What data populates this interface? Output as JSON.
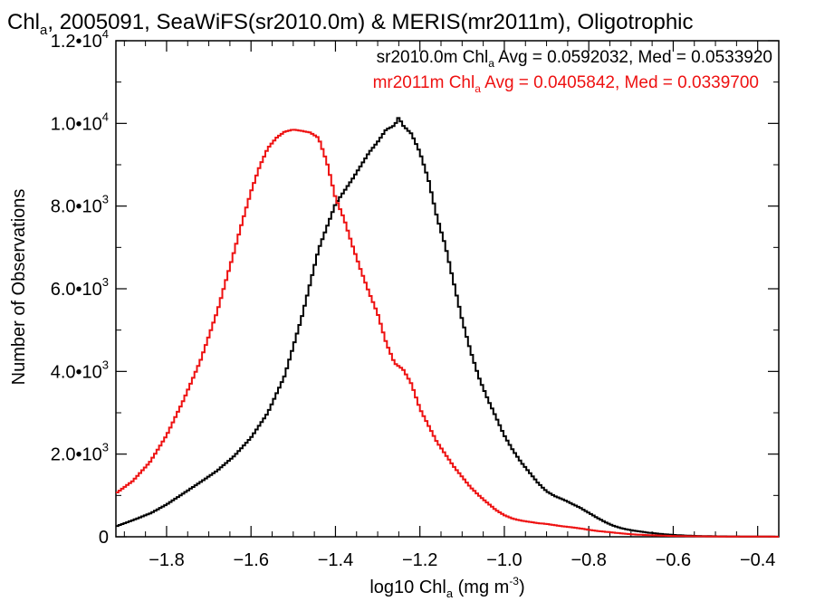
{
  "chart_data": {
    "type": "line",
    "title": "Chl",
    "title_sub": "a",
    "title_rest": ", 2005091, SeaWiFS(sr2010.0m) & MERIS(mr2011m), Oligotrophic",
    "xlabel_pre": "log10 Chl",
    "xlabel_sub": "a",
    "xlabel_unit": " (mg m",
    "xlabel_sup": "-3",
    "xlabel_close": ")",
    "ylabel": "Number of Observations",
    "xlim": [
      -1.92,
      -0.35
    ],
    "ylim": [
      0,
      12000
    ],
    "x_ticks": [
      {
        "value": -1.8,
        "label": "−1.8"
      },
      {
        "value": -1.6,
        "label": "−1.6"
      },
      {
        "value": -1.4,
        "label": "−1.4"
      },
      {
        "value": -1.2,
        "label": "−1.2"
      },
      {
        "value": -1.0,
        "label": "−1.0"
      },
      {
        "value": -0.8,
        "label": "−0.8"
      },
      {
        "value": -0.6,
        "label": "−0.6"
      },
      {
        "value": -0.4,
        "label": "−0.4"
      }
    ],
    "y_ticks": [
      {
        "value": 0,
        "label": "0",
        "exp": ""
      },
      {
        "value": 2000,
        "label": "2.0•10",
        "exp": "3"
      },
      {
        "value": 4000,
        "label": "4.0•10",
        "exp": "3"
      },
      {
        "value": 6000,
        "label": "6.0•10",
        "exp": "3"
      },
      {
        "value": 8000,
        "label": "8.0•10",
        "exp": "3"
      },
      {
        "value": 10000,
        "label": "1.0•10",
        "exp": "4"
      },
      {
        "value": 12000,
        "label": "1.2•10",
        "exp": "4"
      }
    ],
    "legend": [
      {
        "pre": "sr2010.0m Chl",
        "sub": "a",
        "post": " Avg = 0.0592032, Med = 0.0533920",
        "color": "#000000"
      },
      {
        "pre": "mr2011m Chl",
        "sub": "a",
        "post": " Avg = 0.0405842, Med = 0.0339700",
        "color": "#ee1111"
      }
    ],
    "series": [
      {
        "color": "#000000",
        "x": [
          -1.92,
          -1.88,
          -1.84,
          -1.8,
          -1.76,
          -1.72,
          -1.68,
          -1.64,
          -1.6,
          -1.56,
          -1.52,
          -1.48,
          -1.44,
          -1.4,
          -1.36,
          -1.32,
          -1.3,
          -1.28,
          -1.26,
          -1.25,
          -1.24,
          -1.22,
          -1.2,
          -1.18,
          -1.16,
          -1.14,
          -1.12,
          -1.1,
          -1.08,
          -1.06,
          -1.04,
          -1.02,
          -1.0,
          -0.98,
          -0.96,
          -0.94,
          -0.92,
          -0.9,
          -0.88,
          -0.86,
          -0.84,
          -0.82,
          -0.8,
          -0.78,
          -0.76,
          -0.74,
          -0.72,
          -0.7,
          -0.68,
          -0.66,
          -0.64,
          -0.62,
          -0.6,
          -0.58,
          -0.56,
          -0.54,
          -0.5,
          -0.45,
          -0.4,
          -0.35
        ],
        "values": [
          250,
          400,
          560,
          780,
          1050,
          1320,
          1600,
          1950,
          2400,
          3000,
          3900,
          5300,
          6950,
          8050,
          8650,
          9300,
          9550,
          9850,
          9950,
          10150,
          9950,
          9750,
          9300,
          8650,
          7750,
          7050,
          6150,
          5250,
          4500,
          3850,
          3350,
          2900,
          2450,
          2100,
          1800,
          1550,
          1300,
          1100,
          980,
          900,
          800,
          700,
          580,
          460,
          350,
          260,
          200,
          160,
          130,
          100,
          80,
          60,
          45,
          35,
          25,
          20,
          12,
          8,
          5,
          3
        ]
      },
      {
        "color": "#ee1111",
        "x": [
          -1.92,
          -1.88,
          -1.84,
          -1.8,
          -1.76,
          -1.72,
          -1.68,
          -1.64,
          -1.62,
          -1.6,
          -1.58,
          -1.56,
          -1.54,
          -1.52,
          -1.5,
          -1.48,
          -1.46,
          -1.44,
          -1.42,
          -1.4,
          -1.38,
          -1.36,
          -1.34,
          -1.32,
          -1.3,
          -1.28,
          -1.26,
          -1.24,
          -1.22,
          -1.2,
          -1.18,
          -1.16,
          -1.14,
          -1.12,
          -1.1,
          -1.08,
          -1.06,
          -1.04,
          -1.02,
          -1.0,
          -0.98,
          -0.96,
          -0.94,
          -0.92,
          -0.9,
          -0.88,
          -0.86,
          -0.84,
          -0.82,
          -0.8,
          -0.78,
          -0.76,
          -0.74,
          -0.72,
          -0.7,
          -0.66,
          -0.62,
          -0.58,
          -0.5,
          -0.4,
          -0.35
        ],
        "values": [
          1050,
          1350,
          1800,
          2450,
          3300,
          4250,
          5450,
          6900,
          7650,
          8350,
          8950,
          9400,
          9650,
          9800,
          9850,
          9820,
          9780,
          9650,
          9050,
          8200,
          7700,
          7050,
          6450,
          5900,
          5400,
          4700,
          4200,
          4050,
          3700,
          3100,
          2700,
          2300,
          2000,
          1700,
          1450,
          1200,
          1000,
          820,
          650,
          520,
          440,
          390,
          360,
          330,
          310,
          280,
          250,
          230,
          200,
          170,
          140,
          120,
          100,
          80,
          60,
          40,
          25,
          15,
          8,
          4,
          3
        ]
      }
    ]
  }
}
